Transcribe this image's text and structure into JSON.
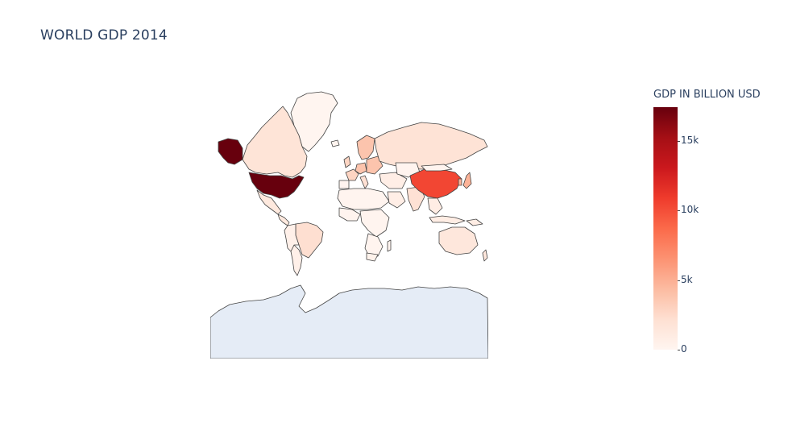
{
  "title": "WORLD GDP 2014",
  "colorbar": {
    "title": "GDP IN BILLION USD",
    "colorscale": "Reds",
    "range": [
      0,
      17420
    ],
    "ticks": [
      {
        "label": "0",
        "value": 0
      },
      {
        "label": "5k",
        "value": 5000
      },
      {
        "label": "10k",
        "value": 10000
      },
      {
        "label": "15k",
        "value": 15000
      }
    ]
  },
  "chart_data": {
    "type": "choropleth",
    "title": "WORLD GDP 2014",
    "projection": "mercator",
    "value_unit": "GDP IN BILLION USD",
    "colorscale": "Reds",
    "color_range": [
      0,
      17420
    ],
    "regions": [
      {
        "name": "United States",
        "value": 17420
      },
      {
        "name": "China",
        "value": 10360
      },
      {
        "name": "Japan",
        "value": 4770
      },
      {
        "name": "Germany",
        "value": 3820
      },
      {
        "name": "France",
        "value": 2902
      },
      {
        "name": "United Kingdom",
        "value": 2848
      },
      {
        "name": "Brazil",
        "value": 2244
      },
      {
        "name": "Italy",
        "value": 2129
      },
      {
        "name": "India",
        "value": 2048
      },
      {
        "name": "Russia",
        "value": 1857
      },
      {
        "name": "Canada",
        "value": 1794
      },
      {
        "name": "Australia",
        "value": 1483
      },
      {
        "name": "Mexico",
        "value": 1296
      },
      {
        "name": "Indonesia",
        "value": 856
      },
      {
        "name": "Saudi Arabia",
        "value": 748
      },
      {
        "name": "Argentina",
        "value": 536
      },
      {
        "name": "South Africa",
        "value": 350
      },
      {
        "name": "Greenland",
        "value": 2
      },
      {
        "name": "Antarctica",
        "value": null
      }
    ]
  }
}
